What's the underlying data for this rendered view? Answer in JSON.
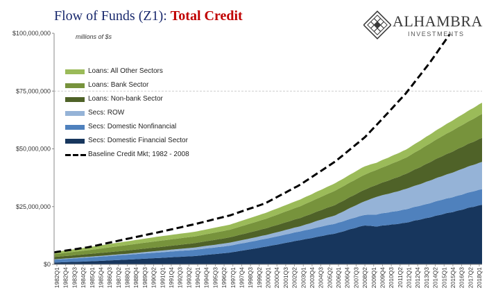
{
  "header": {
    "title_main": "Flow of Funds (Z1): ",
    "title_accent": "Total Credit",
    "title_color": "#1a2a6e",
    "accent_color": "#c00000"
  },
  "logo": {
    "name": "ALHAMBRA",
    "subtitle": "INVESTMENTS",
    "icon": "diamond-lattice-icon"
  },
  "units_note": "millions of $s",
  "chart_data": {
    "type": "area",
    "stacked": true,
    "y_tick_labels": [
      "$0",
      "$25,000,000",
      "$50,000,000",
      "$75,000,000",
      "$100,000,000"
    ],
    "y_ticks": [
      0,
      25000000,
      50000000,
      75000000,
      100000000
    ],
    "ylim": [
      0,
      100000000
    ],
    "y_gridlines": [
      75000000
    ],
    "x_tick_labels": [
      "1982Q1",
      "1982Q4",
      "1983Q3",
      "1984Q2",
      "1985Q1",
      "1985Q4",
      "1986Q3",
      "1987Q2",
      "1988Q1",
      "1988Q4",
      "1989Q3",
      "1990Q2",
      "1991Q1",
      "1991Q4",
      "1992Q3",
      "1993Q2",
      "1994Q1",
      "1994Q4",
      "1995Q3",
      "1996Q2",
      "1997Q1",
      "1997Q4",
      "1998Q3",
      "1999Q2",
      "2000Q1",
      "2000Q4",
      "2001Q3",
      "2002Q2",
      "2003Q1",
      "2003Q4",
      "2004Q3",
      "2005Q2",
      "2006Q1",
      "2006Q4",
      "2007Q3",
      "2008Q2",
      "2009Q1",
      "2009Q4",
      "2010Q3",
      "2011Q2",
      "2012Q1",
      "2012Q4",
      "2013Q3",
      "2014Q2",
      "2015Q1",
      "2015Q4",
      "2016Q3",
      "2017Q2",
      "2018Q1"
    ],
    "x_start": 1982.0,
    "x_end": 2018.5,
    "anchor_years": [
      1982,
      1985,
      1988,
      1991,
      1994,
      1997,
      2000,
      2003,
      2006,
      2008.5,
      2009.5,
      2012,
      2015,
      2018.5
    ],
    "series": [
      {
        "name": "Secs: Domestic Financial Sector",
        "color": "#17365d",
        "values": [
          0.8,
          1.3,
          2.0,
          2.8,
          3.6,
          5.1,
          7.6,
          10.5,
          13.4,
          16.9,
          16.4,
          18.0,
          21.5,
          25.8
        ]
      },
      {
        "name": "Secs: Domestic Nonfinancial",
        "color": "#4f81bd",
        "values": [
          1.2,
          1.7,
          2.1,
          2.4,
          2.7,
          3.0,
          3.4,
          3.8,
          4.3,
          4.6,
          5.2,
          5.8,
          6.3,
          6.8
        ]
      },
      {
        "name": "Secs: ROW",
        "color": "#95b3d7",
        "values": [
          0.2,
          0.3,
          0.4,
          0.7,
          1.0,
          1.3,
          1.6,
          2.2,
          3.6,
          5.9,
          7.6,
          8.8,
          10.2,
          11.8
        ]
      },
      {
        "name": "Loans: Non-bank Sector",
        "color": "#4f6228",
        "values": [
          1.0,
          1.2,
          1.4,
          1.6,
          1.9,
          2.3,
          2.9,
          3.6,
          4.5,
          5.0,
          5.2,
          6.5,
          8.6,
          10.4
        ]
      },
      {
        "name": "Loans: Bank Sector",
        "color": "#77933c",
        "values": [
          1.2,
          1.7,
          2.3,
          2.7,
          2.9,
          3.3,
          4.1,
          5.1,
          6.2,
          6.5,
          6.5,
          7.0,
          8.6,
          10.3
        ]
      },
      {
        "name": "Loans: All Other Sectors",
        "color": "#9bbb59",
        "values": [
          0.9,
          1.3,
          1.6,
          1.9,
          2.0,
          2.2,
          2.6,
          2.9,
          3.2,
          3.6,
          3.1,
          3.5,
          4.1,
          4.9
        ]
      }
    ],
    "value_unit_note": "series values in $ millions x 1,000,000 (i.e. trillions of millions)",
    "baseline": {
      "name": "Baseline Credit Mkt; 1982 - 2008",
      "color": "#000000",
      "style": "dashed",
      "years": [
        1982,
        1985,
        1988,
        1991,
        1994,
        1997,
        2000,
        2003,
        2006,
        2008.5,
        2010,
        2012,
        2014,
        2015.8
      ],
      "values": [
        5.2,
        7.5,
        10.8,
        14.0,
        17.4,
        21.2,
        26.4,
        34.5,
        44.6,
        55.0,
        63.0,
        74.0,
        87.0,
        100.0
      ]
    },
    "legend_placement": "upper-left"
  }
}
